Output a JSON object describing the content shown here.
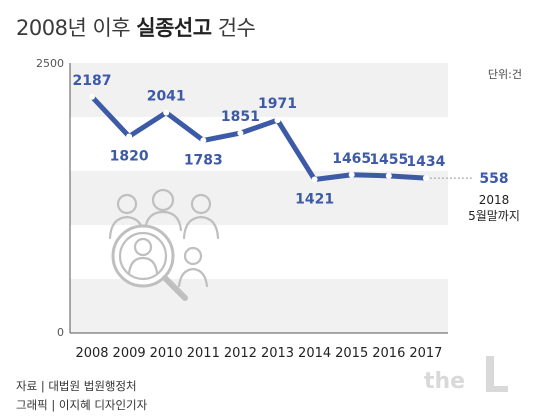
{
  "header": {
    "title_prefix": "2008년 이후 ",
    "title_bold": "실종선고",
    "title_suffix": " 건수",
    "unit": "단위:건"
  },
  "chart_data": {
    "type": "line",
    "title": "2008년 이후 실종선고 건수",
    "categories": [
      "2008",
      "2009",
      "2010",
      "2011",
      "2012",
      "2013",
      "2014",
      "2015",
      "2016",
      "2017"
    ],
    "values": [
      2187,
      1820,
      2041,
      1783,
      1851,
      1971,
      1421,
      1465,
      1455,
      1434
    ],
    "extra_point": {
      "value": 558,
      "label_line1": "2018",
      "label_line2": "5월말까지"
    },
    "ylim": [
      0,
      2500
    ],
    "y_ticks": [
      "2500",
      "0"
    ],
    "grid": "alternating bands",
    "line_color": "#3c5aa6"
  },
  "footer": {
    "source": "자료 | 대법원 법원행정처",
    "graphic": "그래픽 | 이지혜 디자인기자"
  },
  "watermark": "the L",
  "icons": {
    "illustration": "missing-person-search-icon"
  }
}
